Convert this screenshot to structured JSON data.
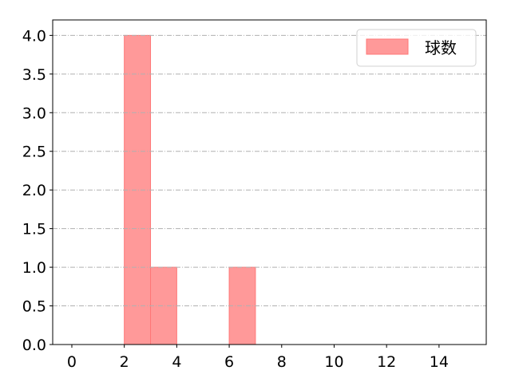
{
  "chart_data": {
    "type": "bar",
    "title": "",
    "xlabel": "",
    "ylabel": "",
    "xlim": [
      -0.73,
      15.8
    ],
    "ylim": [
      0,
      4.2
    ],
    "xticks": [
      "0",
      "2",
      "4",
      "6",
      "8",
      "10",
      "12",
      "14"
    ],
    "yticks": [
      "0.0",
      "0.5",
      "1.0",
      "1.5",
      "2.0",
      "2.5",
      "3.0",
      "3.5",
      "4.0"
    ],
    "grid": true,
    "legend_placement": "top-right",
    "series": [
      {
        "name": "球数",
        "color": "#ff9999",
        "edge_color": "#ff7777",
        "bins": [
          {
            "start": 2,
            "end": 3,
            "value": 4
          },
          {
            "start": 3,
            "end": 4,
            "value": 1
          },
          {
            "start": 6,
            "end": 7,
            "value": 1
          }
        ]
      }
    ]
  }
}
